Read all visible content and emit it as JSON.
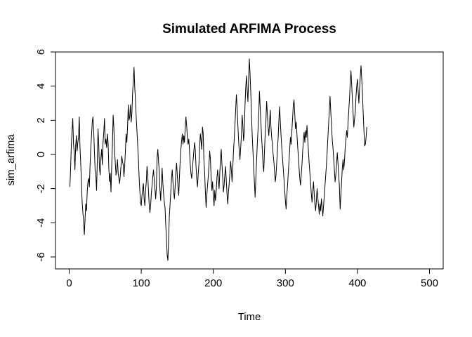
{
  "chart_data": {
    "type": "line",
    "title": "Simulated ARFIMA Process",
    "xlabel": "Time",
    "ylabel": "sim_arfima",
    "xlim": [
      -19,
      519
    ],
    "ylim": [
      -6.7,
      6.0
    ],
    "x_ticks": [
      0,
      100,
      200,
      300,
      400,
      500
    ],
    "y_ticks": [
      -6,
      -4,
      -2,
      0,
      2,
      4,
      6
    ],
    "x_tick_labels": [
      "0",
      "100",
      "200",
      "300",
      "400",
      "500"
    ],
    "y_tick_labels": [
      "-6",
      "-4",
      "-2",
      "0",
      "2",
      "4",
      "6"
    ],
    "grid": false,
    "line_color": "#000000",
    "series": [
      {
        "x_start": 1,
        "x_step": 1,
        "values": [
          -1.9,
          -0.8,
          0.6,
          1.4,
          2.1,
          0.6,
          0.1,
          -0.9,
          0.5,
          1.1,
          0.2,
          0.7,
          1.0,
          2.2,
          0.4,
          -0.5,
          -1.6,
          -2.8,
          -3.4,
          -3.9,
          -4.7,
          -3.8,
          -2.9,
          -3.3,
          -2.2,
          -1.6,
          -1.4,
          -1.9,
          -0.6,
          0.4,
          1.1,
          1.9,
          2.2,
          1.4,
          0.2,
          -0.9,
          -1.2,
          -2.1,
          -0.4,
          1.5,
          0.6,
          -0.8,
          -1.2,
          -0.2,
          0.3,
          -0.6,
          0.7,
          1.3,
          2.1,
          0.6,
          0.9,
          0.4,
          1.2,
          0.7,
          -0.8,
          -1.6,
          -1.1,
          -2.2,
          -0.7,
          0.6,
          2.3,
          1.6,
          0.2,
          -0.5,
          -1.2,
          -0.9,
          -0.3,
          -1.1,
          -1.4,
          -1.7,
          -1.2,
          -0.6,
          -0.1,
          -0.4,
          -0.6,
          -1.3,
          -0.7,
          0.2,
          1.2,
          0.7,
          1.6,
          2.9,
          2.0,
          2.2,
          2.9,
          1.9,
          2.4,
          3.6,
          4.3,
          5.1,
          3.9,
          3.2,
          2.2,
          1.4,
          0.6,
          -0.2,
          -1.3,
          -2.1,
          -2.8,
          -3.0,
          -2.4,
          -2.0,
          -1.7,
          -2.6,
          -3.0,
          -2.1,
          -1.6,
          -0.7,
          -1.2,
          -2.1,
          -2.9,
          -3.4,
          -3.0,
          -2.3,
          -1.8,
          -1.3,
          -0.9,
          -1.5,
          -2.0,
          -2.6,
          -1.9,
          -0.2,
          0.3,
          -0.4,
          -1.0,
          -2.1,
          -2.7,
          -1.6,
          -0.8,
          -1.7,
          -2.3,
          -2.8,
          -3.1,
          -4.1,
          -5.0,
          -5.9,
          -6.2,
          -4.9,
          -3.6,
          -2.9,
          -2.2,
          -1.4,
          -0.9,
          -1.6,
          -2.2,
          -2.6,
          -1.9,
          -1.1,
          -0.5,
          -1.2,
          -1.9,
          -2.4,
          -1.3,
          -0.4,
          0.3,
          0.8,
          1.2,
          0.6,
          1.1,
          0.7,
          1.5,
          2.2,
          1.7,
          1.0,
          0.6,
          0.9,
          0.2,
          -0.6,
          -1.1,
          -1.4,
          -0.9,
          -0.3,
          0.2,
          0.7,
          0.3,
          -0.7,
          -1.4,
          -1.9,
          -1.2,
          -0.6,
          0.4,
          1.2,
          0.8,
          0.3,
          1.6,
          1.2,
          -0.4,
          -1.1,
          -2.2,
          -3.1,
          -2.4,
          -1.8,
          -1.3,
          -0.6,
          0.2,
          -0.3,
          -1.4,
          -2.1,
          -1.6,
          -2.4,
          -3.0,
          -2.1,
          -2.7,
          -2.2,
          -1.4,
          -0.9,
          -1.5,
          -2.0,
          -1.1,
          -0.2,
          0.3,
          -0.6,
          -1.3,
          -2.2,
          -1.8,
          -1.2,
          -0.7,
          -1.5,
          -2.3,
          -2.9,
          -2.2,
          -1.7,
          -1.1,
          -0.4,
          -0.9,
          -1.6,
          -0.8,
          0.2,
          0.9,
          1.7,
          2.6,
          3.5,
          2.8,
          1.8,
          0.9,
          0.2,
          -0.3,
          0.4,
          1.1,
          2.3,
          1.7,
          0.8,
          1.3,
          2.9,
          3.9,
          4.6,
          3.8,
          3.1,
          4.4,
          5.6,
          4.7,
          3.6,
          2.3,
          1.1,
          0.2,
          -0.8,
          -1.6,
          -2.5,
          -1.4,
          -0.4,
          0.6,
          1.4,
          2.2,
          3.7,
          2.8,
          1.9,
          1.0,
          0.3,
          -0.6,
          -1.0,
          0.2,
          1.2,
          2.0,
          3.1,
          2.4,
          1.6,
          1.1,
          1.8,
          2.6,
          1.6,
          1.0,
          0.6,
          0.0,
          -0.4,
          -1.0,
          -1.6,
          -1.2,
          -0.5,
          0.3,
          1.0,
          2.0,
          2.8,
          1.9,
          1.1,
          0.4,
          -0.2,
          -0.8,
          -1.4,
          -2.1,
          -2.7,
          -3.2,
          -2.4,
          -1.8,
          -1.1,
          -0.4,
          0.3,
          1.0,
          0.6,
          1.4,
          2.1,
          2.9,
          3.2,
          2.4,
          1.5,
          1.9,
          1.2,
          0.5,
          -0.1,
          -0.8,
          -1.4,
          -1.8,
          -1.2,
          -0.6,
          0.2,
          0.8,
          1.3,
          0.7,
          1.4,
          1.0,
          1.7,
          0.9,
          0.2,
          -0.5,
          -1.1,
          -1.7,
          -2.3,
          -2.8,
          -2.2,
          -1.6,
          -2.3,
          -2.9,
          -3.3,
          -2.7,
          -2.0,
          -2.5,
          -3.0,
          -3.5,
          -2.9,
          -3.3,
          -2.6,
          -3.1,
          -3.6,
          -3.0,
          -2.4,
          -1.8,
          -1.2,
          -0.6,
          0.2,
          1.0,
          1.8,
          2.6,
          3.4,
          2.5,
          1.7,
          0.9,
          0.4,
          -0.2,
          -0.9,
          -1.6,
          -1.2,
          -0.6,
          0.1,
          -0.5,
          -1.2,
          -1.9,
          -3.2,
          -2.4,
          -1.6,
          -0.8,
          -0.3,
          -0.9,
          -0.4,
          0.4,
          0.9,
          1.4,
          1.0,
          1.9,
          2.6,
          3.3,
          4.2,
          4.9,
          4.1,
          3.2,
          2.4,
          1.6,
          2.1,
          2.5,
          3.4,
          4.0,
          4.4,
          3.7,
          3.0,
          3.9,
          4.6,
          5.2,
          4.4,
          3.5,
          2.4,
          1.4,
          0.5,
          0.6,
          1.0,
          1.6
        ]
      }
    ]
  }
}
